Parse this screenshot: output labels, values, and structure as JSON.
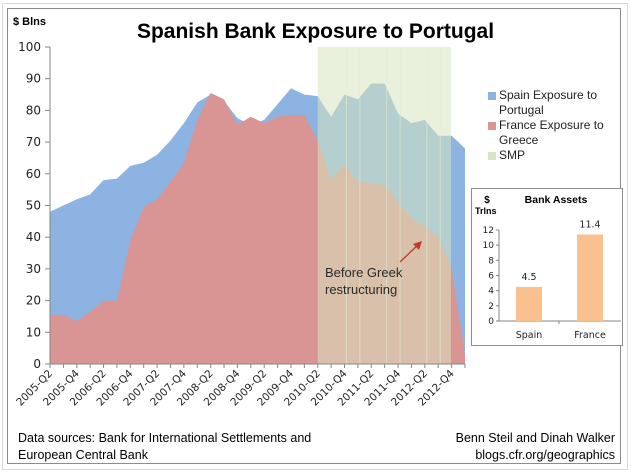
{
  "chart_data": [
    {
      "type": "area",
      "title": "Spanish Bank Exposure to Portugal",
      "ylabel": "$ Blns",
      "xlabel": "",
      "ylim": [
        0,
        100
      ],
      "yticks": [
        0,
        10,
        20,
        30,
        40,
        50,
        60,
        70,
        80,
        90,
        100
      ],
      "categories": [
        "2005-Q2",
        "2005-Q3",
        "2005-Q4",
        "2006-Q1",
        "2006-Q2",
        "2006-Q3",
        "2006-Q4",
        "2007-Q1",
        "2007-Q2",
        "2007-Q3",
        "2007-Q4",
        "2008-Q1",
        "2008-Q2",
        "2008-Q3",
        "2008-Q4",
        "2009-Q1",
        "2009-Q2",
        "2009-Q3",
        "2009-Q4",
        "2010-Q1",
        "2010-Q2",
        "2010-Q3",
        "2010-Q4",
        "2011-Q1",
        "2011-Q2",
        "2011-Q3",
        "2011-Q4",
        "2012-Q1",
        "2012-Q2",
        "2012-Q3",
        "2012-Q4",
        "2013-Q1"
      ],
      "xtick_labels": [
        "2005-Q2",
        "2005-Q4",
        "2006-Q2",
        "2006-Q4",
        "2007-Q2",
        "2007-Q4",
        "2008-Q2",
        "2008-Q4",
        "2009-Q2",
        "2009-Q4",
        "2010-Q2",
        "2010-Q4",
        "2011-Q2",
        "2011-Q4",
        "2012-Q2",
        "2012-Q4"
      ],
      "series": [
        {
          "name": "Spain Exposure to Portugal",
          "color": "#8db3e2",
          "values": [
            48,
            50,
            52,
            53.5,
            58,
            58.5,
            62.5,
            63.5,
            66,
            70.5,
            76,
            82.5,
            85,
            83,
            77.5,
            75.5,
            77,
            82,
            87,
            85,
            84.5,
            78,
            85,
            83.5,
            88.5,
            88.5,
            79,
            76,
            77,
            72,
            72,
            68
          ]
        },
        {
          "name": "France Exposure to Greece",
          "color": "#d99594",
          "values": [
            15.5,
            15.5,
            13.5,
            16.5,
            20,
            20,
            39,
            49.5,
            52,
            57.5,
            63.5,
            77,
            85.5,
            83.5,
            75.5,
            78,
            76,
            78,
            78.5,
            78.5,
            70.5,
            58,
            63,
            57.5,
            57,
            56.5,
            51,
            46,
            43.5,
            40,
            30,
            3
          ]
        },
        {
          "name": "SMP",
          "color": "#d7e4bd",
          "range": [
            "2010-Q2",
            "2012-Q4"
          ]
        }
      ],
      "legend_position": "right",
      "annotation": {
        "text_line1": "Before Greek",
        "text_line2": "restructuring",
        "points_to": "2012-Q2"
      }
    },
    {
      "type": "bar",
      "title": "Bank Assets",
      "ylabel_line1": "$",
      "ylabel_line2": "Trlns",
      "categories": [
        "Spain",
        "France"
      ],
      "values": [
        4.5,
        11.4
      ],
      "value_labels": [
        "4.5",
        "11.4"
      ],
      "ylim": [
        0,
        12
      ],
      "yticks": [
        "0",
        "2",
        "4",
        "6",
        "8",
        "10",
        "12"
      ],
      "color": "#fac090"
    }
  ],
  "footer": {
    "source_line1": "Data sources: Bank for International Settlements and",
    "source_line2": "European Central Bank",
    "credit_line1": "Benn Steil and Dinah Walker",
    "credit_line2": "blogs.cfr.org/geographics"
  }
}
